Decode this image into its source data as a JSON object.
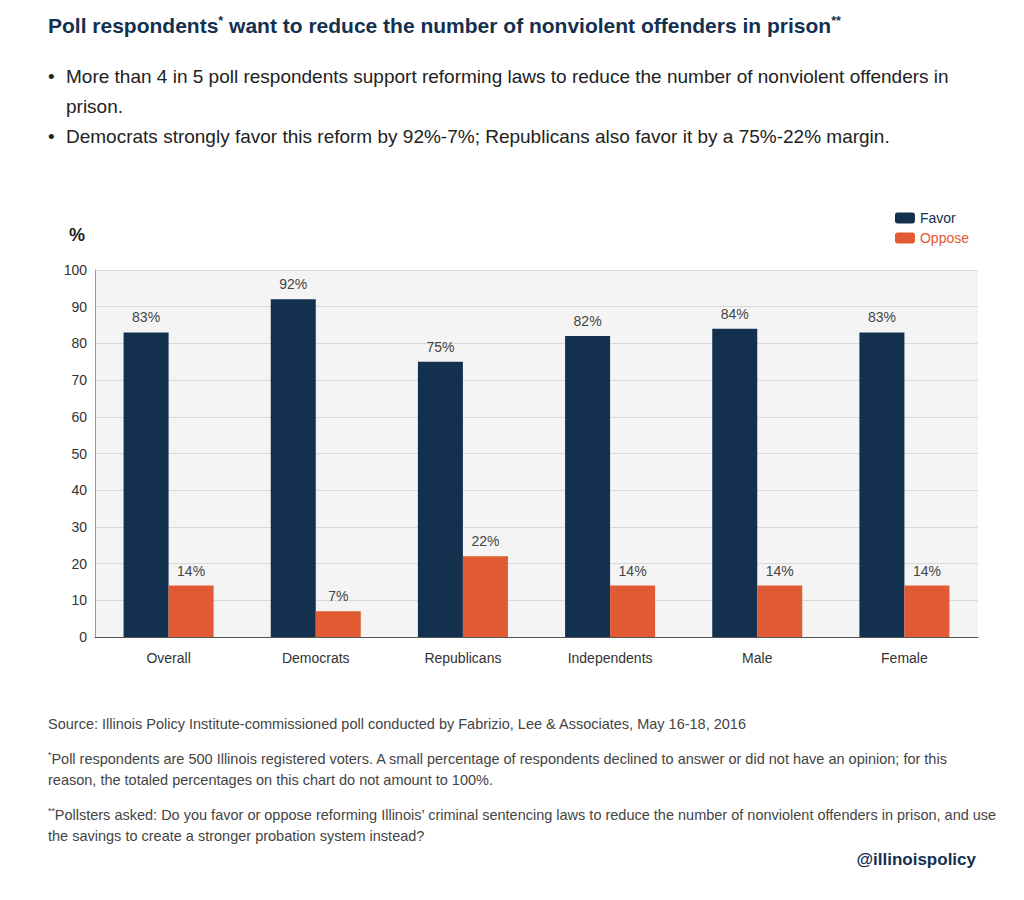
{
  "chart_data": {
    "type": "bar",
    "title": "Poll respondents* want to reduce the number of nonviolent offenders in prison**",
    "subtitle": [
      "More than 4 in 5 poll respondents support reforming laws to reduce the number of nonviolent offenders in prison.",
      "Democrats strongly favor this reform by 92%-7%; Republicans also favor it by a 75%-22% margin."
    ],
    "ylabel": "%",
    "categories": [
      "Overall",
      "Democrats",
      "Republicans",
      "Independents",
      "Male",
      "Female"
    ],
    "series": [
      {
        "name": "Favor",
        "color": "#14304f",
        "values": [
          83,
          92,
          75,
          82,
          84,
          83
        ],
        "value_labels": [
          "83%",
          "92%",
          "75%",
          "82%",
          "84%",
          "83%"
        ]
      },
      {
        "name": "Oppose",
        "color": "#e05a33",
        "values": [
          14,
          7,
          22,
          14,
          14,
          14
        ],
        "value_labels": [
          "14%",
          "7%",
          "22%",
          "14%",
          "14%",
          "14%"
        ]
      }
    ],
    "ylim": [
      0,
      100
    ],
    "yticks": [
      0,
      10,
      20,
      30,
      40,
      50,
      60,
      70,
      80,
      90,
      100
    ],
    "grid": true,
    "legend": "top-right",
    "data_labels": true,
    "annotations": [
      "Source: Illinois Policy Institute-commissioned poll conducted by Fabrizio, Lee & Associates, May 16-18, 2016",
      "*Poll respondents are 500 Illinois registered voters. A small percentage of respondents declined to answer or did not have an opinion; for this reason, the totaled percentages on this chart do not amount to 100%.",
      "**Pollsters asked: Do you favor or oppose reforming Illinois’ criminal sentencing laws to reduce the number of nonviolent offenders in prison, and use the savings to create a stronger probation system instead?"
    ],
    "credit": "@illinoispolicy"
  }
}
